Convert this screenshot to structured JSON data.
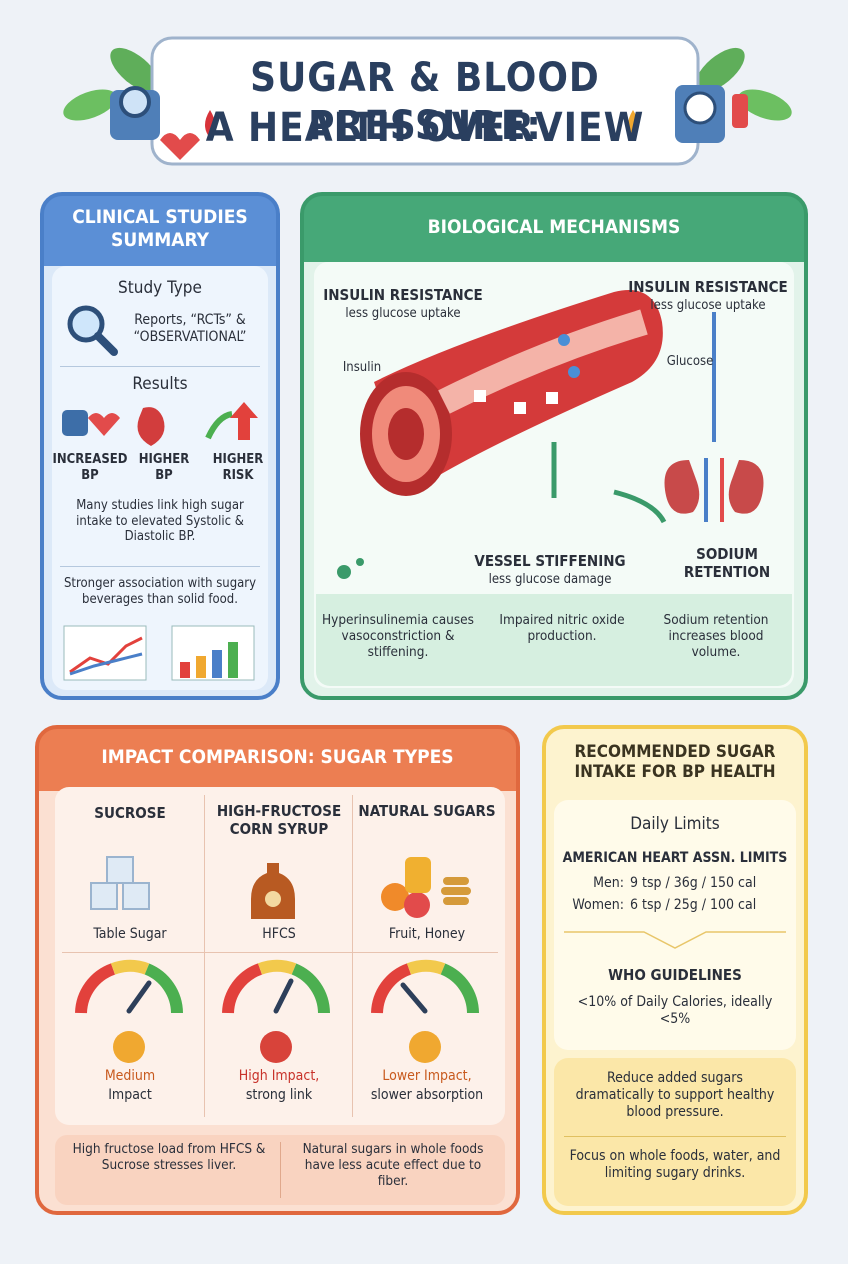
{
  "header": {
    "title_line1": "SUGAR & BLOOD PRESSURE:",
    "title_line2": "A HEALTH OVERVIEW"
  },
  "clinical": {
    "title": "CLINICAL STUDIES SUMMARY",
    "study_type": {
      "heading": "Study Type",
      "text": "Reports, “RCTs” & “OBSERVATIONAL”"
    },
    "results": {
      "heading": "Results",
      "items": [
        "INCREASED BP",
        "HIGHER BP",
        "HIGHER RISK"
      ]
    },
    "summary": "Many studies link high sugar intake to elevated Systolic & Diastolic BP.",
    "note": "Stronger association with sugary beverages than solid food."
  },
  "mechanisms": {
    "title": "BIOLOGICAL MECHANISMS",
    "left_label": {
      "heading": "INSULIN RESISTANCE",
      "sub": "less glucose uptake"
    },
    "right_label": {
      "heading": "INSULIN RESISTANCE",
      "sub": "less glucose uptake"
    },
    "insulin": "Insulin",
    "glucose": "Glucose",
    "vessel": {
      "heading": "VESSEL STIFFENING",
      "sub": "less glucose damage"
    },
    "sodium": "SODIUM RETENTION",
    "notes": [
      "Hyperinsulinemia causes vasoconstriction & stiffening.",
      "Impaired nitric oxide production.",
      "Sodium retention increases blood volume."
    ]
  },
  "impact": {
    "title": "IMPACT COMPARISON: SUGAR TYPES",
    "columns": [
      {
        "name": "SUCROSE",
        "example": "Table Sugar",
        "level": "Medium",
        "detail": "Impact"
      },
      {
        "name": "HIGH-FRUCTOSE CORN SYRUP",
        "example": "HFCS",
        "level": "High Impact,",
        "detail": "strong link"
      },
      {
        "name": "NATURAL SUGARS",
        "example": "Fruit, Honey",
        "level": "Lower Impact,",
        "detail": "slower absorption"
      }
    ],
    "notes": [
      "High fructose load from HFCS & Sucrose stresses liver.",
      "Natural sugars in whole foods have less acute effect due to fiber."
    ]
  },
  "recommended": {
    "title": "RECOMMENDED SUGAR INTAKE FOR BP HEALTH",
    "daily": "Daily Limits",
    "aha": "AMERICAN HEART ASSN. LIMITS",
    "men_label": "Men:",
    "men": "9 tsp / 36g / 150 cal",
    "women_label": "Women:",
    "women": "6 tsp / 25g / 100 cal",
    "who": "WHO GUIDELINES",
    "who_text": "<10% of Daily Calories, ideally <5%",
    "advice": "Reduce added sugars dramatically to support healthy blood pressure.",
    "focus": "Focus on whole foods, water, and limiting sugary drinks."
  }
}
